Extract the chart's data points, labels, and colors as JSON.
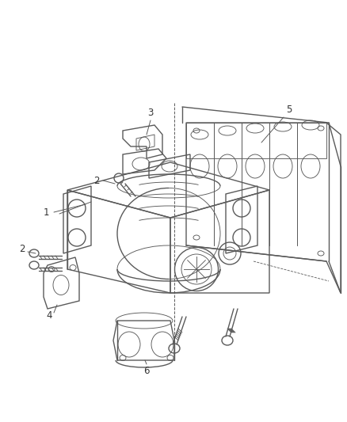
{
  "background_color": "#ffffff",
  "line_color": "#5a5a5a",
  "label_color": "#333333",
  "figsize": [
    4.38,
    5.33
  ],
  "dpi": 100,
  "lw_main": 1.0,
  "lw_thin": 0.65,
  "label_fontsize": 8.5
}
